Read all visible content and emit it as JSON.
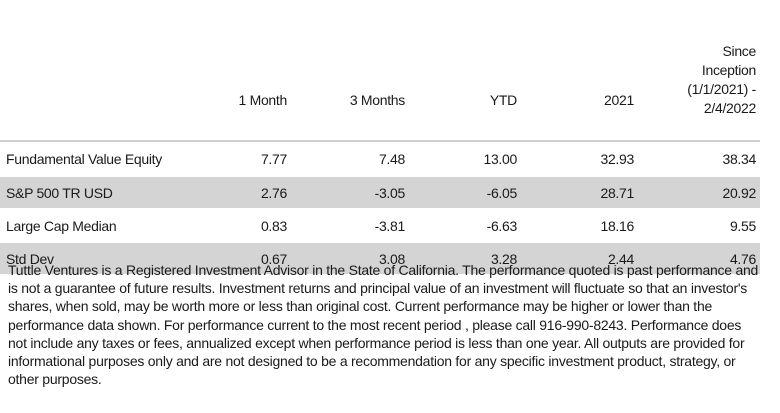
{
  "table": {
    "headers": {
      "name": "",
      "one_month": "1 Month",
      "three_months": "3 Months",
      "ytd": "YTD",
      "year_2021": "2021",
      "since_inception_l1": "Since",
      "since_inception_l2": "Inception",
      "since_inception_l3": "(1/1/2021) -",
      "since_inception_l4": "2/4/2022"
    },
    "rows": [
      {
        "name": "Fundamental Value Equity",
        "one_month": "7.77",
        "three_months": "7.48",
        "ytd": "13.00",
        "year_2021": "32.93",
        "since_inception": "38.34"
      },
      {
        "name": "S&P 500 TR USD",
        "one_month": "2.76",
        "three_months": "-3.05",
        "ytd": "-6.05",
        "year_2021": "28.71",
        "since_inception": "20.92"
      },
      {
        "name": "Large Cap Median",
        "one_month": "0.83",
        "three_months": "-3.81",
        "ytd": "-6.63",
        "year_2021": "18.16",
        "since_inception": "9.55"
      },
      {
        "name": "Std Dev",
        "one_month": "0.67",
        "three_months": "3.08",
        "ytd": "3.28",
        "year_2021": "2.44",
        "since_inception": "4.76"
      }
    ]
  },
  "disclaimer": "Tuttle Ventures is a Registered Investment Advisor in the State of California. The performance quoted is past performance and is not a guarantee of future results. Investment returns and principal value of an investment will fluctuate so that an  investor's shares, when sold, may be worth more or less than original cost.  Current performance may be higher or lower than the performance data shown.  For performance current to the most recent period , please call  916-990-8243. Performance does not include any taxes or fees, annualized except when performance  period is less than one year. All outputs are provided for informational purposes  only and are not designed to be a recommendation for any specific investment  product, strategy, or other purposes."
}
